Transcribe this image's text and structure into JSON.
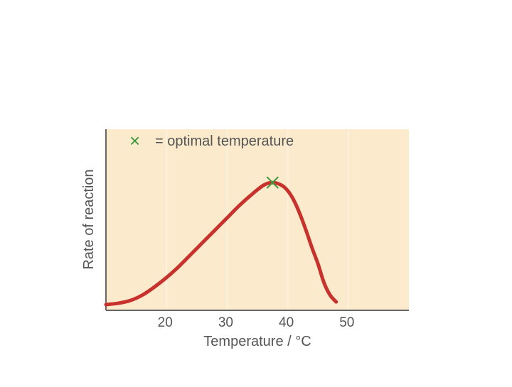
{
  "chart_data": {
    "type": "line",
    "title": "",
    "xlabel": "Temperature / °C",
    "ylabel": "Rate of reaction",
    "xlim": [
      10,
      60
    ],
    "ylim": [
      0,
      1
    ],
    "x_ticks": [
      20,
      30,
      40,
      50
    ],
    "y_ticks": [],
    "grid": "vertical",
    "legend": {
      "position": "top-left",
      "marker": "×",
      "label": "= optimal temperature"
    },
    "series": [
      {
        "x": [
          10,
          12,
          14,
          16,
          18,
          20,
          22,
          24,
          26,
          28,
          30,
          32,
          34,
          36,
          37.5,
          39,
          40,
          41,
          42,
          43,
          44,
          45,
          46,
          47,
          48
        ],
        "y": [
          0.0,
          0.01,
          0.03,
          0.07,
          0.13,
          0.2,
          0.28,
          0.37,
          0.46,
          0.55,
          0.64,
          0.73,
          0.81,
          0.88,
          0.9,
          0.88,
          0.84,
          0.77,
          0.67,
          0.55,
          0.42,
          0.3,
          0.16,
          0.07,
          0.02
        ]
      }
    ],
    "annotations": [
      {
        "type": "marker",
        "symbol": "×",
        "x": 37.5,
        "y": 0.9,
        "meaning": "optimal temperature"
      }
    ],
    "colors": {
      "line": "#c8322d",
      "marker": "#3c9a3c",
      "plot_bg": "#fbebcc",
      "grid": "#fff4e2",
      "axis": "#666666",
      "text": "#555555"
    }
  }
}
